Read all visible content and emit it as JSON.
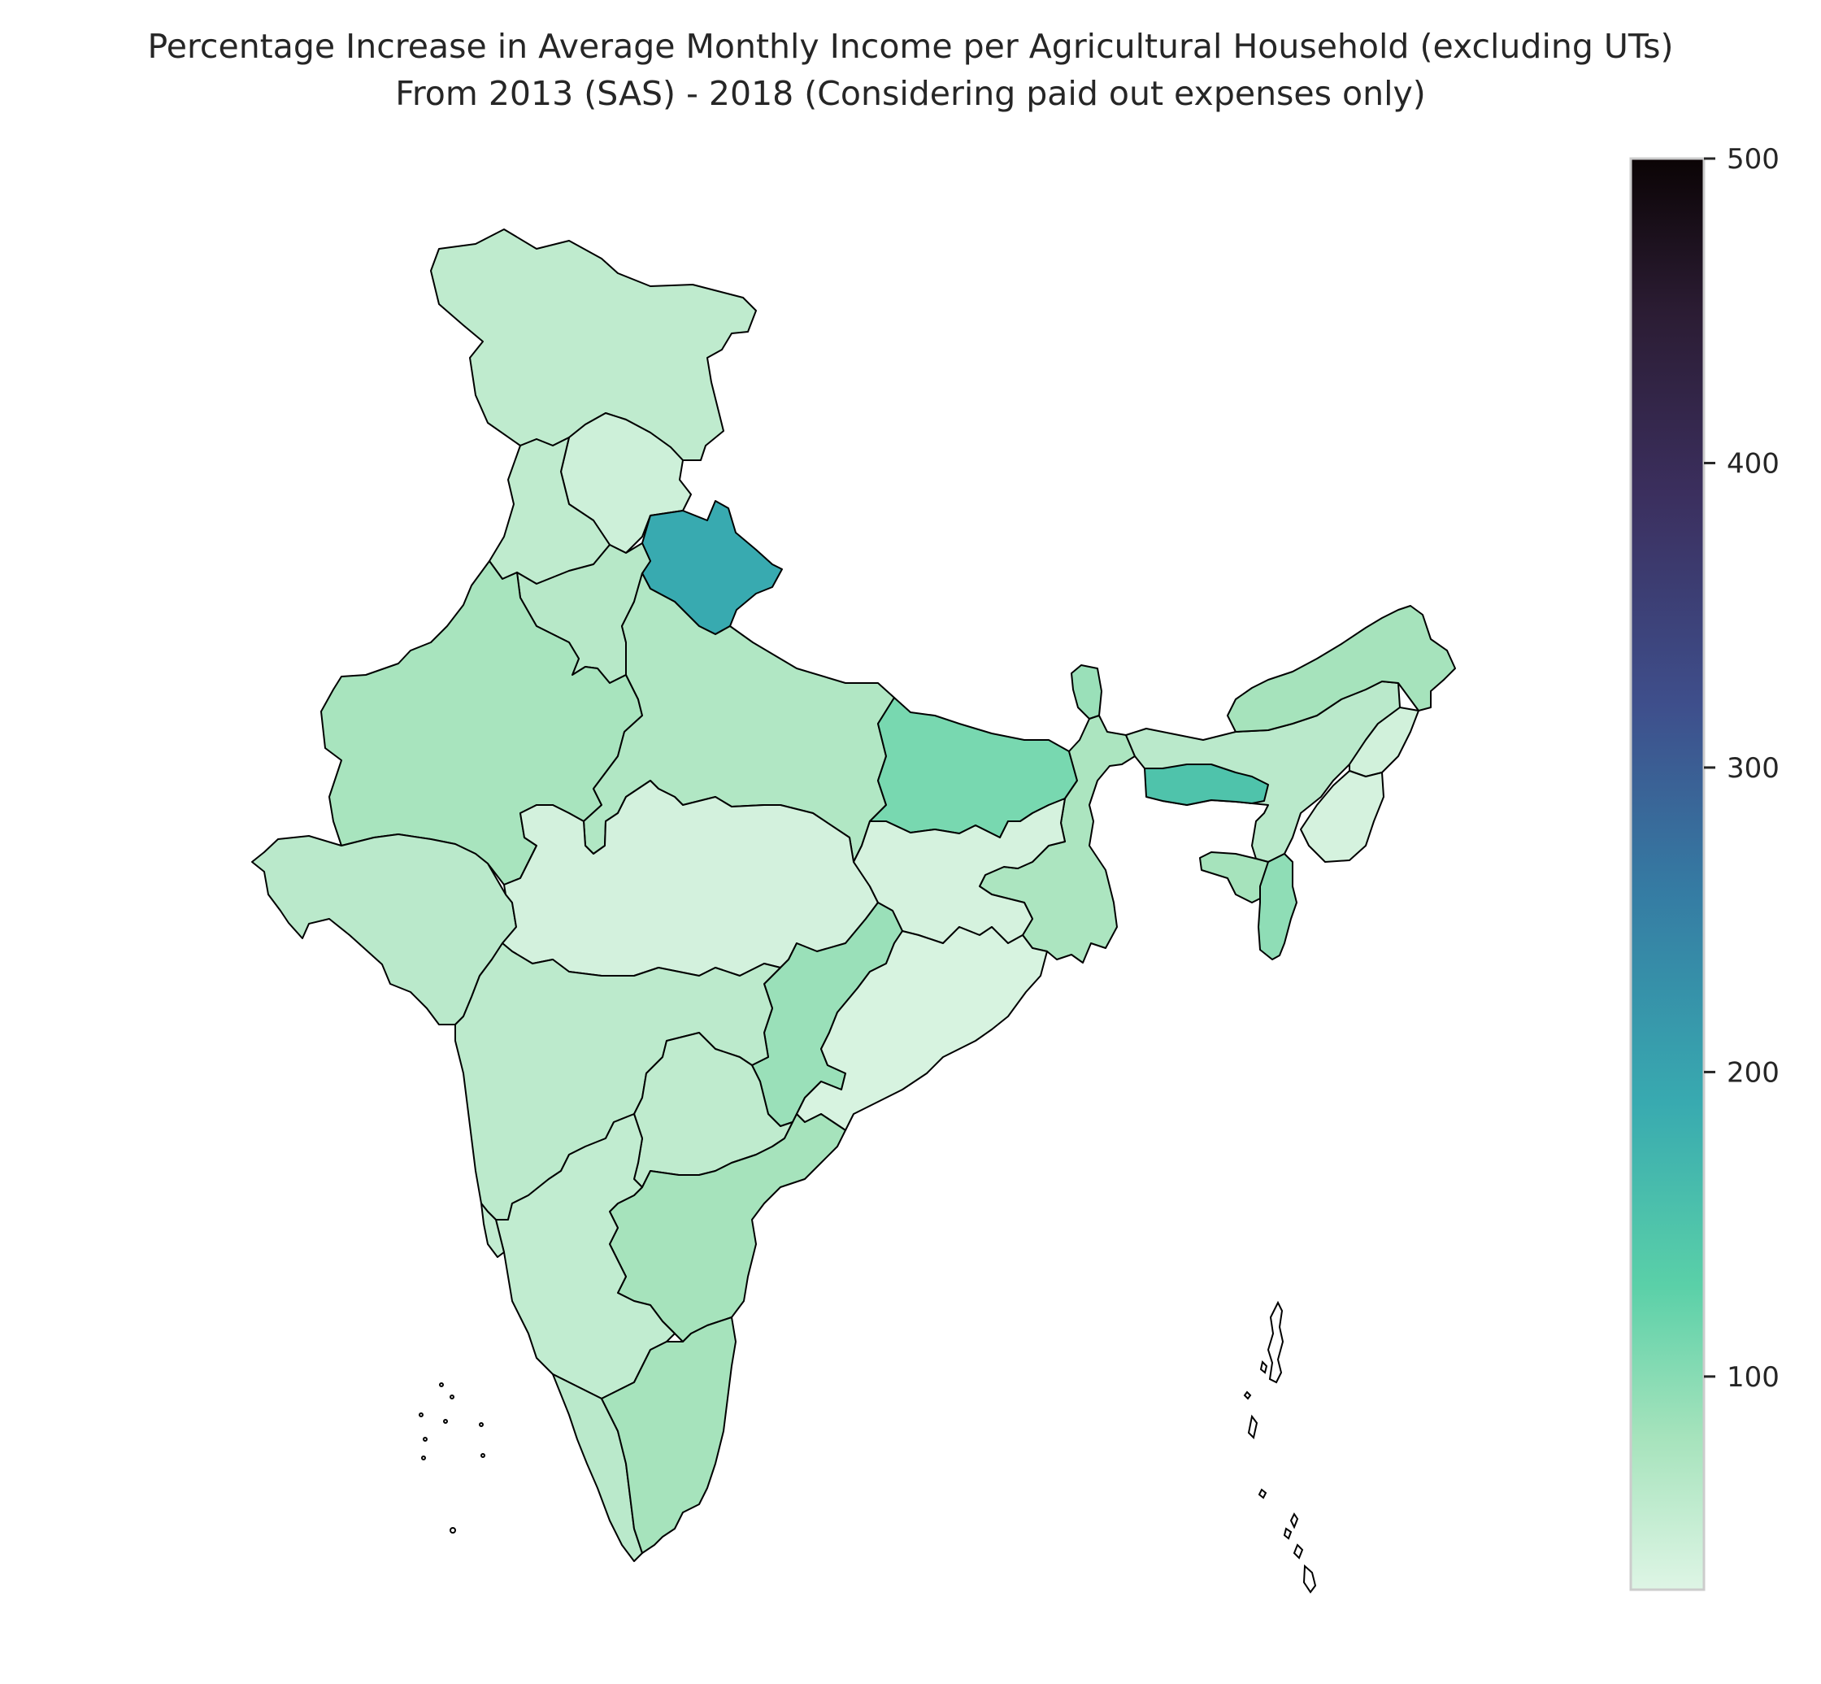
{
  "title": {
    "line1": "Percentage Increase in Average Monthly Income per Agricultural Household (excluding UTs)",
    "line2": "From 2013 (SAS) - 2018 (Considering paid out expenses only)"
  },
  "colorbar": {
    "min": 30,
    "max": 500,
    "ticks": [
      "100",
      "200",
      "300",
      "400",
      "500"
    ],
    "tick_values": [
      100,
      200,
      300,
      400,
      500
    ],
    "colormap": "mako_r",
    "stops": [
      {
        "value": 30,
        "color": "#def5e5"
      },
      {
        "value": 80,
        "color": "#a6e3bc"
      },
      {
        "value": 130,
        "color": "#5ad0a8"
      },
      {
        "value": 190,
        "color": "#38aab0"
      },
      {
        "value": 260,
        "color": "#357ba3"
      },
      {
        "value": 320,
        "color": "#3e4f8c"
      },
      {
        "value": 390,
        "color": "#3b2f5e"
      },
      {
        "value": 450,
        "color": "#2b1c33"
      },
      {
        "value": 500,
        "color": "#0b0405"
      }
    ]
  },
  "chart_data": {
    "type": "choropleth",
    "value_range": [
      30,
      500
    ],
    "regions": [
      {
        "name": "Jammu & Kashmir",
        "value": 58
      },
      {
        "name": "Himachal Pradesh",
        "value": 45
      },
      {
        "name": "Punjab",
        "value": 58
      },
      {
        "name": "Uttarakhand",
        "value": 190
      },
      {
        "name": "Haryana",
        "value": 65
      },
      {
        "name": "Rajasthan",
        "value": 78
      },
      {
        "name": "Uttar Pradesh",
        "value": 70
      },
      {
        "name": "Bihar",
        "value": 110
      },
      {
        "name": "Sikkim",
        "value": 88
      },
      {
        "name": "West Bengal",
        "value": 75
      },
      {
        "name": "Assam",
        "value": 62
      },
      {
        "name": "Arunachal Pradesh",
        "value": 80
      },
      {
        "name": "Nagaland",
        "value": 42
      },
      {
        "name": "Meghalaya",
        "value": 150
      },
      {
        "name": "Manipur",
        "value": 38
      },
      {
        "name": "Tripura",
        "value": 80
      },
      {
        "name": "Mizoram",
        "value": 95
      },
      {
        "name": "Gujarat",
        "value": 62
      },
      {
        "name": "Madhya Pradesh",
        "value": 40
      },
      {
        "name": "Jharkhand",
        "value": 38
      },
      {
        "name": "Chhattisgarh",
        "value": 88
      },
      {
        "name": "Odisha",
        "value": 36
      },
      {
        "name": "Maharashtra",
        "value": 60
      },
      {
        "name": "Telangana",
        "value": 58
      },
      {
        "name": "Andhra Pradesh",
        "value": 80
      },
      {
        "name": "Karnataka",
        "value": 56
      },
      {
        "name": "Goa",
        "value": 55
      },
      {
        "name": "Kerala",
        "value": 62
      },
      {
        "name": "Tamil Nadu",
        "value": 80
      }
    ]
  }
}
